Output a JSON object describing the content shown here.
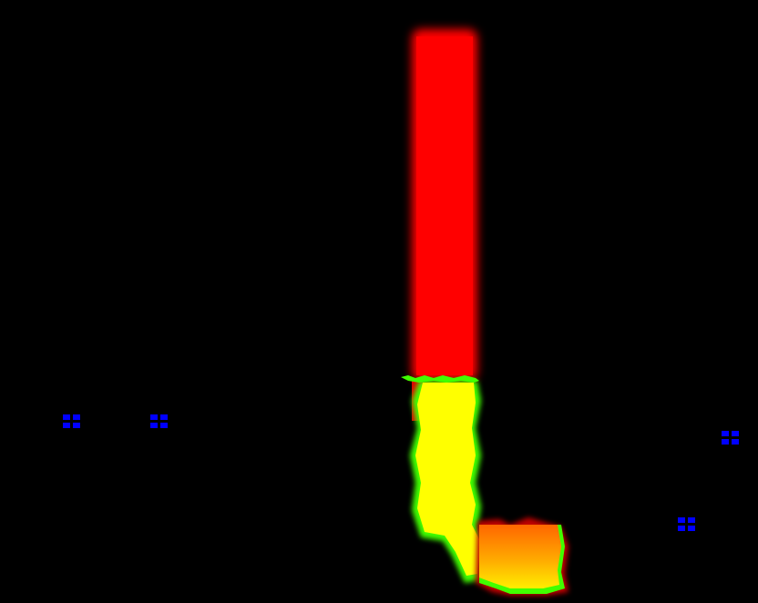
{
  "scene": {
    "background_color": "#000000",
    "shape_colors": {
      "upper_segment": "#ff0000",
      "middle_segment": "#ffff00",
      "edge_highlight": "#40ff00",
      "lower_gradient_top": "#ff6600",
      "lower_gradient_bottom": "#ffee00"
    },
    "marker_color": "#0000ff",
    "marker_icon": "four-square-grid-icon"
  }
}
